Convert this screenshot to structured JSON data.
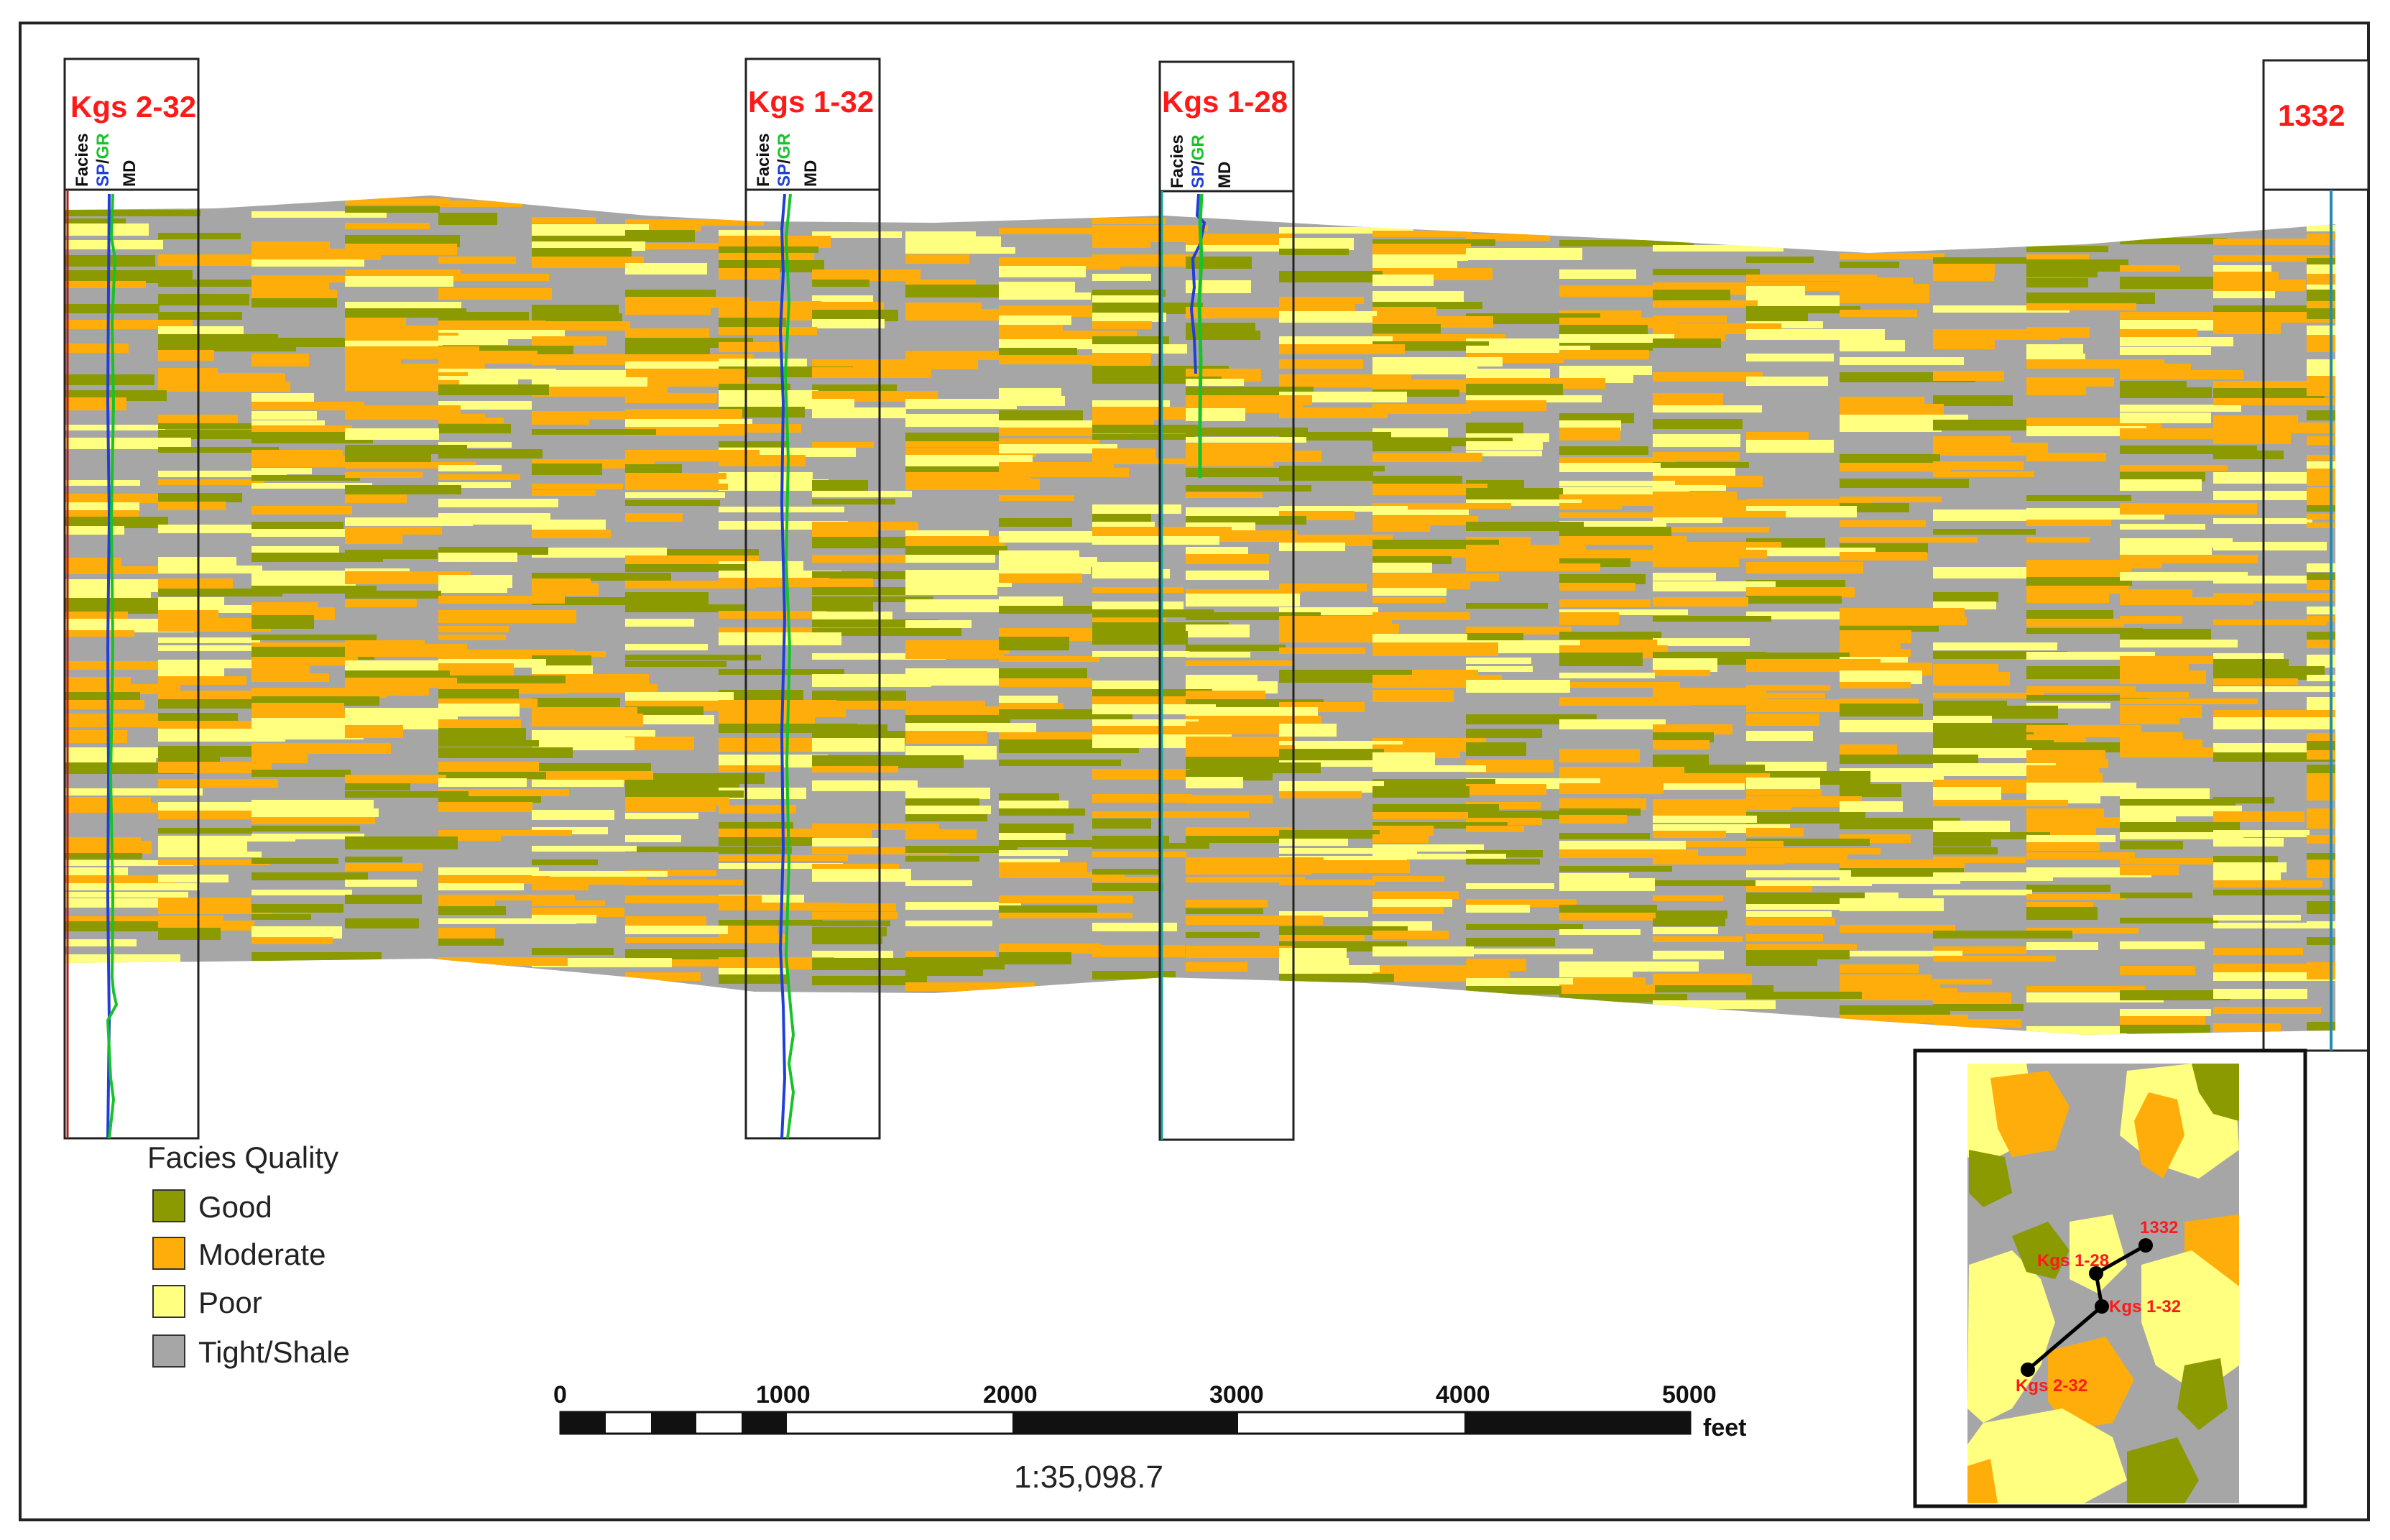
{
  "colors": {
    "good": "#8a9a00",
    "moderate": "#ffad0a",
    "poor": "#ffff80",
    "tight_shale": "#a6a6a6",
    "well_name": "#ff1a1a",
    "sp_curve": "#1f3fd6",
    "gr_curve": "#19c22b"
  },
  "wells": [
    {
      "name": "Kgs 2-32",
      "tracks": [
        "Facies",
        "SP",
        "GR",
        "MD"
      ]
    },
    {
      "name": "Kgs 1-32",
      "tracks": [
        "Facies",
        "SP",
        "GR",
        "MD"
      ]
    },
    {
      "name": "Kgs 1-28",
      "tracks": [
        "Facies",
        "SP",
        "GR",
        "MD"
      ]
    },
    {
      "name": "1332",
      "tracks": []
    }
  ],
  "legend": {
    "title": "Facies Quality",
    "items": [
      {
        "label": "Good",
        "color_key": "good"
      },
      {
        "label": "Moderate",
        "color_key": "moderate"
      },
      {
        "label": "Poor",
        "color_key": "poor"
      },
      {
        "label": "Tight/Shale",
        "color_key": "tight_shale"
      }
    ]
  },
  "scale_bar": {
    "ticks": [
      "0",
      "1000",
      "2000",
      "3000",
      "4000",
      "5000"
    ],
    "unit": "feet",
    "ratio": "1:35,098.7"
  },
  "inset_map": {
    "wells": [
      "1332",
      "Kgs 1-28",
      "Kgs 1-32",
      "Kgs 2-32"
    ]
  }
}
